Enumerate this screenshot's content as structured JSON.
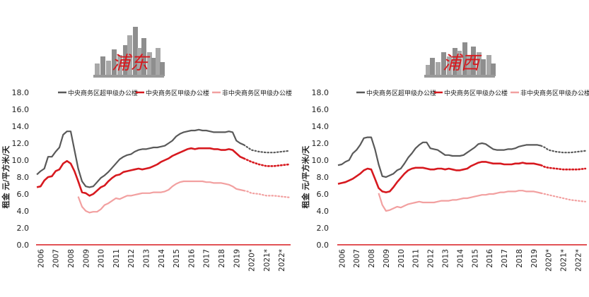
{
  "colors": {
    "cbd_super": "#595959",
    "cbd_gradeA": "#d7191f",
    "noncbd_gradeA": "#f2a0a0",
    "axis": "#d7191f",
    "skyline": "#9a9a9a",
    "calligraphy": "#d7191f"
  },
  "panels": [
    {
      "logo_text": "浦东",
      "chart_data": {
        "type": "line",
        "title": "",
        "xlabel": "",
        "ylabel": "租金 元/平方米/天",
        "ylim": [
          0,
          18
        ],
        "yticks": [
          "0.0",
          "2.0",
          "4.0",
          "6.0",
          "8.0",
          "10.0",
          "12.0",
          "14.0",
          "16.0",
          "18.0"
        ],
        "xticks": [
          "2006",
          "2007",
          "2008",
          "2009",
          "2010",
          "2011",
          "2012",
          "2013",
          "2014",
          "2015",
          "2016",
          "2017",
          "2018",
          "2019",
          "2020*",
          "2021*",
          "2022*"
        ],
        "xlim": [
          2005.7,
          2022.6
        ],
        "forecast_start": 2019.5,
        "legend_position": "top",
        "grid": false,
        "series": [
          {
            "name": "中央商务区超甲级办公楼",
            "color_key": "cbd_super",
            "x": [
              2005.75,
              2006,
              2006.25,
              2006.5,
              2006.75,
              2007,
              2007.25,
              2007.5,
              2007.75,
              2008,
              2008.25,
              2008.5,
              2008.75,
              2009,
              2009.25,
              2009.5,
              2009.75,
              2010,
              2010.25,
              2010.5,
              2010.75,
              2011,
              2011.25,
              2011.5,
              2011.75,
              2012,
              2012.25,
              2012.5,
              2012.75,
              2013,
              2013.25,
              2013.5,
              2013.75,
              2014,
              2014.25,
              2014.5,
              2014.75,
              2015,
              2015.25,
              2015.5,
              2015.75,
              2016,
              2016.25,
              2016.5,
              2016.75,
              2017,
              2017.25,
              2017.5,
              2017.75,
              2018,
              2018.25,
              2018.5,
              2018.75,
              2019,
              2019.25,
              2019.5,
              2019.75,
              2020,
              2020.5,
              2021,
              2021.5,
              2022,
              2022.5
            ],
            "y": [
              8.3,
              8.7,
              9.0,
              10.4,
              10.4,
              11.0,
              11.5,
              13.0,
              13.4,
              13.4,
              11.2,
              9.0,
              7.5,
              6.9,
              6.8,
              6.9,
              7.4,
              7.9,
              8.2,
              8.6,
              9.1,
              9.6,
              10.1,
              10.4,
              10.6,
              10.7,
              11.0,
              11.2,
              11.3,
              11.3,
              11.4,
              11.5,
              11.5,
              11.6,
              11.7,
              12.0,
              12.3,
              12.8,
              13.1,
              13.3,
              13.4,
              13.5,
              13.5,
              13.6,
              13.5,
              13.5,
              13.4,
              13.3,
              13.3,
              13.3,
              13.3,
              13.4,
              13.3,
              12.3,
              12.0,
              11.8,
              11.5,
              11.2,
              11.0,
              10.9,
              10.9,
              11.0,
              11.1
            ]
          },
          {
            "name": "中央商务区甲级办公楼",
            "color_key": "cbd_gradeA",
            "x": [
              2005.75,
              2006,
              2006.25,
              2006.5,
              2006.75,
              2007,
              2007.25,
              2007.5,
              2007.75,
              2008,
              2008.25,
              2008.5,
              2008.75,
              2009,
              2009.25,
              2009.5,
              2009.75,
              2010,
              2010.25,
              2010.5,
              2010.75,
              2011,
              2011.25,
              2011.5,
              2011.75,
              2012,
              2012.25,
              2012.5,
              2012.75,
              2013,
              2013.25,
              2013.5,
              2013.75,
              2014,
              2014.25,
              2014.5,
              2014.75,
              2015,
              2015.25,
              2015.5,
              2015.75,
              2016,
              2016.25,
              2016.5,
              2016.75,
              2017,
              2017.25,
              2017.5,
              2017.75,
              2018,
              2018.25,
              2018.5,
              2018.75,
              2019,
              2019.25,
              2019.5,
              2019.75,
              2020,
              2020.5,
              2021,
              2021.5,
              2022,
              2022.5
            ],
            "y": [
              6.8,
              6.9,
              7.6,
              8.0,
              8.1,
              8.7,
              8.9,
              9.6,
              9.9,
              9.6,
              8.7,
              7.5,
              6.2,
              6.1,
              5.8,
              6.0,
              6.4,
              6.8,
              7.0,
              7.5,
              7.9,
              8.2,
              8.3,
              8.6,
              8.7,
              8.8,
              8.9,
              9.0,
              8.9,
              9.0,
              9.1,
              9.3,
              9.5,
              9.8,
              10.0,
              10.2,
              10.5,
              10.7,
              10.9,
              11.1,
              11.3,
              11.4,
              11.3,
              11.4,
              11.4,
              11.4,
              11.4,
              11.3,
              11.3,
              11.2,
              11.2,
              11.3,
              11.2,
              10.8,
              10.4,
              10.2,
              10.0,
              9.8,
              9.5,
              9.3,
              9.3,
              9.4,
              9.5
            ]
          },
          {
            "name": "非中央商务区甲级办公楼",
            "color_key": "noncbd_gradeA",
            "x": [
              2008.5,
              2008.75,
              2009,
              2009.25,
              2009.5,
              2009.75,
              2010,
              2010.25,
              2010.5,
              2010.75,
              2011,
              2011.25,
              2011.5,
              2011.75,
              2012,
              2012.25,
              2012.5,
              2012.75,
              2013,
              2013.25,
              2013.5,
              2013.75,
              2014,
              2014.25,
              2014.5,
              2014.75,
              2015,
              2015.25,
              2015.5,
              2015.75,
              2016,
              2016.25,
              2016.5,
              2016.75,
              2017,
              2017.25,
              2017.5,
              2017.75,
              2018,
              2018.25,
              2018.5,
              2018.75,
              2019,
              2019.25,
              2019.5,
              2019.75,
              2020,
              2020.5,
              2021,
              2021.5,
              2022,
              2022.5
            ],
            "y": [
              5.7,
              4.5,
              4.0,
              3.8,
              3.9,
              3.9,
              4.2,
              4.7,
              4.9,
              5.2,
              5.5,
              5.4,
              5.6,
              5.8,
              5.8,
              5.9,
              6.0,
              6.1,
              6.1,
              6.1,
              6.2,
              6.2,
              6.2,
              6.3,
              6.5,
              6.9,
              7.2,
              7.4,
              7.5,
              7.5,
              7.5,
              7.5,
              7.5,
              7.5,
              7.4,
              7.4,
              7.3,
              7.3,
              7.3,
              7.2,
              7.1,
              6.9,
              6.6,
              6.5,
              6.4,
              6.3,
              6.1,
              6.0,
              5.8,
              5.8,
              5.7,
              5.6
            ]
          }
        ]
      }
    },
    {
      "logo_text": "浦西",
      "chart_data": {
        "type": "line",
        "title": "",
        "xlabel": "",
        "ylabel": "租金 元/平方米/天",
        "ylim": [
          0,
          18
        ],
        "yticks": [
          "0.0",
          "2.0",
          "4.0",
          "6.0",
          "8.0",
          "10.0",
          "12.0",
          "14.0",
          "16.0",
          "18.0"
        ],
        "xticks": [
          "2006",
          "2007",
          "2008",
          "2009",
          "2010",
          "2011",
          "2012",
          "2013",
          "2014",
          "2015",
          "2016",
          "2017",
          "2018",
          "2019",
          "2020*",
          "2021*",
          "2022*"
        ],
        "xlim": [
          2005.7,
          2022.6
        ],
        "forecast_start": 2019.5,
        "legend_position": "top",
        "grid": false,
        "series": [
          {
            "name": "中央商务区超甲级办公楼",
            "color_key": "cbd_super",
            "x": [
              2005.75,
              2006,
              2006.25,
              2006.5,
              2006.75,
              2007,
              2007.25,
              2007.5,
              2007.75,
              2008,
              2008.25,
              2008.5,
              2008.75,
              2009,
              2009.25,
              2009.5,
              2009.75,
              2010,
              2010.25,
              2010.5,
              2010.75,
              2011,
              2011.25,
              2011.5,
              2011.75,
              2012,
              2012.25,
              2012.5,
              2012.75,
              2013,
              2013.25,
              2013.5,
              2013.75,
              2014,
              2014.25,
              2014.5,
              2014.75,
              2015,
              2015.25,
              2015.5,
              2015.75,
              2016,
              2016.25,
              2016.5,
              2016.75,
              2017,
              2017.25,
              2017.5,
              2017.75,
              2018,
              2018.25,
              2018.5,
              2018.75,
              2019,
              2019.25,
              2019.5,
              2019.75,
              2020,
              2020.5,
              2021,
              2021.5,
              2022,
              2022.5
            ],
            "y": [
              9.4,
              9.5,
              9.8,
              10.0,
              10.8,
              11.2,
              11.8,
              12.6,
              12.7,
              12.7,
              11.3,
              9.5,
              8.1,
              8.0,
              8.2,
              8.4,
              8.8,
              9.0,
              9.6,
              10.3,
              10.8,
              11.4,
              11.8,
              12.1,
              12.1,
              11.4,
              11.3,
              11.2,
              10.9,
              10.6,
              10.6,
              10.5,
              10.5,
              10.5,
              10.6,
              10.9,
              11.2,
              11.5,
              11.9,
              12.0,
              11.9,
              11.6,
              11.3,
              11.2,
              11.2,
              11.2,
              11.3,
              11.3,
              11.4,
              11.6,
              11.7,
              11.8,
              11.8,
              11.8,
              11.8,
              11.7,
              11.5,
              11.2,
              11.0,
              10.9,
              10.9,
              11.0,
              11.1
            ]
          },
          {
            "name": "中央商务区甲级办公楼",
            "color_key": "cbd_gradeA",
            "x": [
              2005.75,
              2006,
              2006.25,
              2006.5,
              2006.75,
              2007,
              2007.25,
              2007.5,
              2007.75,
              2008,
              2008.25,
              2008.5,
              2008.75,
              2009,
              2009.25,
              2009.5,
              2009.75,
              2010,
              2010.25,
              2010.5,
              2010.75,
              2011,
              2011.25,
              2011.5,
              2011.75,
              2012,
              2012.25,
              2012.5,
              2012.75,
              2013,
              2013.25,
              2013.5,
              2013.75,
              2014,
              2014.25,
              2014.5,
              2014.75,
              2015,
              2015.25,
              2015.5,
              2015.75,
              2016,
              2016.25,
              2016.5,
              2016.75,
              2017,
              2017.25,
              2017.5,
              2017.75,
              2018,
              2018.25,
              2018.5,
              2018.75,
              2019,
              2019.25,
              2019.5,
              2019.75,
              2020,
              2020.5,
              2021,
              2021.5,
              2022,
              2022.5
            ],
            "y": [
              7.2,
              7.3,
              7.4,
              7.6,
              7.8,
              8.1,
              8.4,
              8.8,
              9.0,
              8.9,
              7.8,
              6.7,
              6.3,
              6.2,
              6.3,
              6.8,
              7.4,
              7.9,
              8.4,
              8.8,
              9.0,
              9.1,
              9.1,
              9.1,
              9.0,
              8.9,
              8.9,
              9.0,
              9.0,
              8.9,
              9.0,
              8.9,
              8.8,
              8.8,
              8.9,
              9.0,
              9.3,
              9.5,
              9.7,
              9.8,
              9.8,
              9.7,
              9.6,
              9.6,
              9.6,
              9.5,
              9.5,
              9.5,
              9.6,
              9.6,
              9.7,
              9.6,
              9.6,
              9.6,
              9.5,
              9.4,
              9.2,
              9.1,
              9.0,
              8.9,
              8.9,
              8.9,
              9.0
            ]
          },
          {
            "name": "非中央商务区甲级办公楼",
            "color_key": "noncbd_gradeA",
            "x": [
              2008.5,
              2008.75,
              2009,
              2009.25,
              2009.5,
              2009.75,
              2010,
              2010.25,
              2010.5,
              2010.75,
              2011,
              2011.25,
              2011.5,
              2011.75,
              2012,
              2012.25,
              2012.5,
              2012.75,
              2013,
              2013.25,
              2013.5,
              2013.75,
              2014,
              2014.25,
              2014.5,
              2014.75,
              2015,
              2015.25,
              2015.5,
              2015.75,
              2016,
              2016.25,
              2016.5,
              2016.75,
              2017,
              2017.25,
              2017.5,
              2017.75,
              2018,
              2018.25,
              2018.5,
              2018.75,
              2019,
              2019.25,
              2019.5,
              2019.75,
              2020,
              2020.5,
              2021,
              2021.5,
              2022,
              2022.5
            ],
            "y": [
              6.1,
              4.7,
              4.0,
              4.1,
              4.3,
              4.5,
              4.4,
              4.6,
              4.8,
              4.9,
              5.0,
              5.1,
              5.0,
              5.0,
              5.0,
              5.0,
              5.1,
              5.2,
              5.2,
              5.2,
              5.3,
              5.3,
              5.4,
              5.5,
              5.5,
              5.6,
              5.7,
              5.8,
              5.9,
              5.9,
              6.0,
              6.0,
              6.1,
              6.2,
              6.2,
              6.3,
              6.3,
              6.3,
              6.4,
              6.4,
              6.3,
              6.3,
              6.3,
              6.2,
              6.1,
              6.0,
              5.9,
              5.7,
              5.5,
              5.3,
              5.2,
              5.1
            ]
          }
        ]
      }
    }
  ]
}
